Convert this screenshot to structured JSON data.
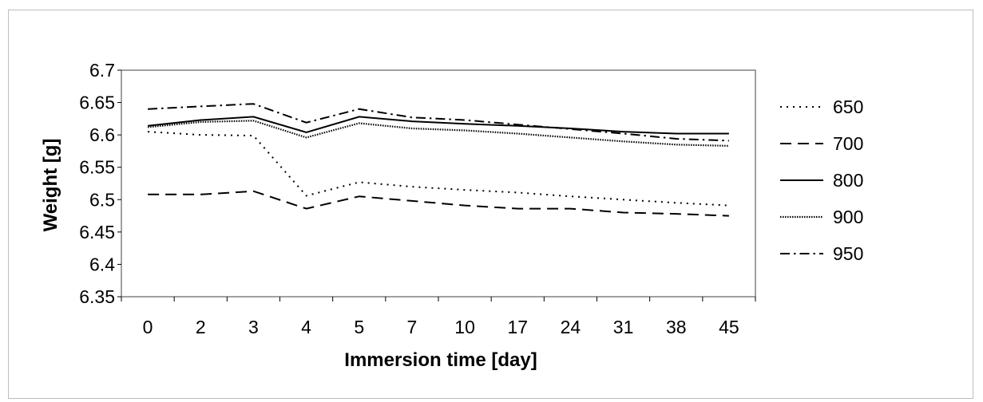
{
  "chart_data": {
    "type": "line",
    "xlabel": "Immersion time [day]",
    "ylabel": "Weight [g]",
    "categories": [
      "0",
      "2",
      "3",
      "4",
      "5",
      "7",
      "10",
      "17",
      "24",
      "31",
      "38",
      "45"
    ],
    "ylim": [
      6.35,
      6.7
    ],
    "yticks": [
      "6.35",
      "6.4",
      "6.45",
      "6.5",
      "6.55",
      "6.6",
      "6.65",
      "6.7"
    ],
    "grid": false,
    "legend_position": "right",
    "series": [
      {
        "name": "650",
        "style": "dotted",
        "color": "#000000",
        "values": [
          6.605,
          6.6,
          6.599,
          6.506,
          6.527,
          6.52,
          6.515,
          6.511,
          6.505,
          6.5,
          6.495,
          6.491
        ]
      },
      {
        "name": "700",
        "style": "dashed",
        "color": "#000000",
        "values": [
          6.508,
          6.508,
          6.513,
          6.486,
          6.505,
          6.498,
          6.491,
          6.486,
          6.486,
          6.48,
          6.478,
          6.475
        ]
      },
      {
        "name": "800",
        "style": "solid",
        "color": "#000000",
        "values": [
          6.614,
          6.623,
          6.628,
          6.604,
          6.628,
          6.621,
          6.617,
          6.614,
          6.61,
          6.605,
          6.602,
          6.602
        ]
      },
      {
        "name": "900",
        "style": "fine-dotted",
        "color": "#000000",
        "values": [
          6.612,
          6.62,
          6.622,
          6.596,
          6.618,
          6.61,
          6.607,
          6.602,
          6.596,
          6.59,
          6.585,
          6.583
        ]
      },
      {
        "name": "950",
        "style": "dash-dot",
        "color": "#000000",
        "values": [
          6.64,
          6.644,
          6.648,
          6.619,
          6.64,
          6.627,
          6.623,
          6.616,
          6.609,
          6.602,
          6.594,
          6.591
        ]
      }
    ]
  }
}
